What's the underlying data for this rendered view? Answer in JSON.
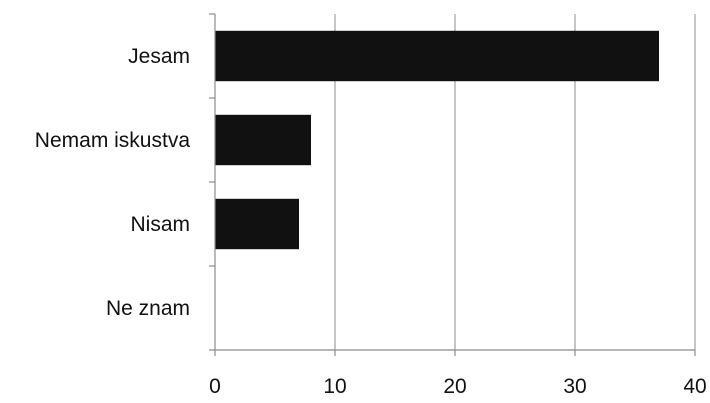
{
  "chart_data": {
    "type": "bar",
    "orientation": "horizontal",
    "categories": [
      "Jesam",
      "Nemam iskustva",
      "Nisam",
      "Ne znam"
    ],
    "values": [
      37,
      8,
      7,
      0
    ],
    "xlim": [
      0,
      40
    ],
    "xticks": [
      0,
      10,
      20,
      30,
      40
    ],
    "grid": "vertical",
    "bar_color": "#111111",
    "title": "",
    "xlabel": "",
    "ylabel": ""
  }
}
